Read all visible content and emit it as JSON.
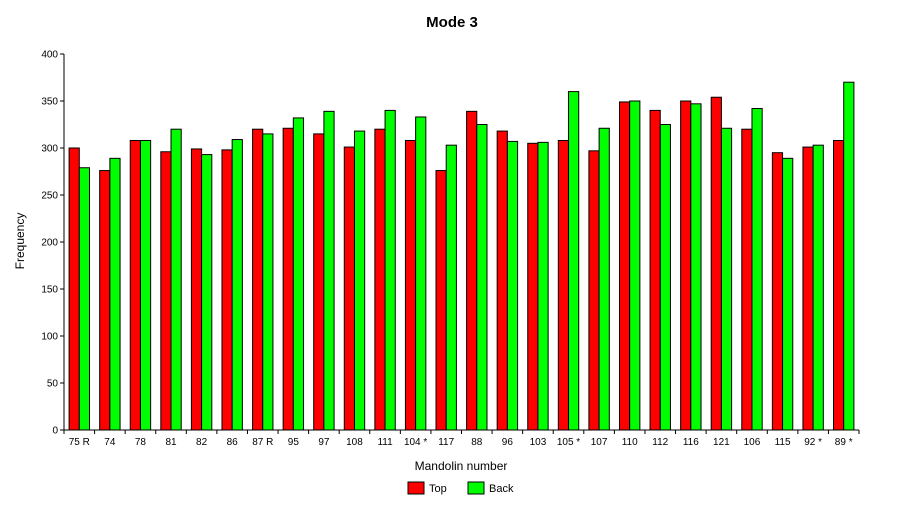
{
  "chart_data": {
    "type": "bar",
    "title": "Mode 3",
    "xlabel": "Mandolin number",
    "ylabel": "Frequency",
    "ylim": [
      0,
      400
    ],
    "yticks": [
      0,
      50,
      100,
      150,
      200,
      250,
      300,
      350,
      400
    ],
    "grid": false,
    "legend_position": "bottom",
    "categories": [
      "75 R",
      "74",
      "78",
      "81",
      "82",
      "86",
      "87 R",
      "95",
      "97",
      "108",
      "111",
      "104 *",
      "117",
      "88",
      "96",
      "103",
      "105 *",
      "107",
      "110",
      "112",
      "116",
      "121",
      "106",
      "115",
      "92 *",
      "89 *"
    ],
    "series": [
      {
        "name": "Top",
        "color": "#ff0000",
        "values": [
          300,
          276,
          308,
          296,
          299,
          298,
          320,
          321,
          315,
          301,
          320,
          308,
          276,
          339,
          318,
          305,
          308,
          297,
          349,
          340,
          350,
          354,
          320,
          295,
          301,
          308
        ]
      },
      {
        "name": "Back",
        "color": "#00ff00",
        "values": [
          279,
          289,
          308,
          320,
          293,
          309,
          315,
          332,
          339,
          318,
          340,
          333,
          303,
          325,
          307,
          306,
          360,
          321,
          350,
          325,
          347,
          321,
          342,
          289,
          303,
          370
        ]
      }
    ]
  }
}
